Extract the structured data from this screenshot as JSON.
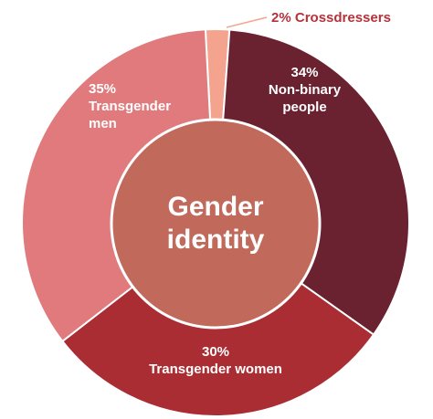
{
  "chart_data": {
    "type": "donut",
    "title": "Gender identity",
    "categories": [
      "Crossdressers",
      "Non-binary people",
      "Transgender women",
      "Transgender men"
    ],
    "values": [
      2,
      34,
      30,
      35
    ],
    "value_labels": [
      "2%",
      "34%",
      "30%",
      "35%"
    ],
    "colors": [
      "#f4a48e",
      "#6a2130",
      "#a92d33",
      "#e07a7c"
    ]
  }
}
